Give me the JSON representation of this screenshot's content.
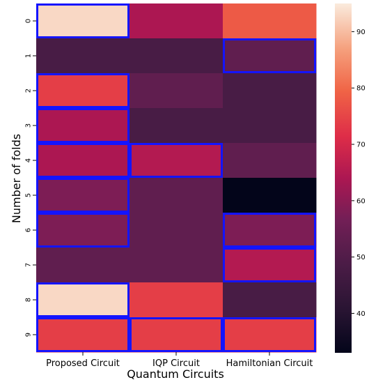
{
  "chart_data": {
    "type": "heatmap",
    "title": "",
    "xlabel": "Quantum Circuits",
    "ylabel": "Number of folds",
    "x_categories": [
      "Proposed Circuit",
      "IQP Circuit",
      "Hamiltonian Circuit"
    ],
    "y_categories": [
      "0",
      "1",
      "2",
      "3",
      "4",
      "5",
      "6",
      "7",
      "8",
      "9"
    ],
    "values": [
      [
        93,
        64,
        78
      ],
      [
        48,
        48,
        53
      ],
      [
        74,
        53,
        48
      ],
      [
        64,
        48,
        48
      ],
      [
        64,
        65,
        53
      ],
      [
        58,
        53,
        33
      ],
      [
        58,
        53,
        58
      ],
      [
        53,
        53,
        65
      ],
      [
        93,
        74,
        48
      ],
      [
        74,
        74,
        74
      ]
    ],
    "highlighted_cells": [
      [
        0,
        0
      ],
      [
        1,
        2
      ],
      [
        2,
        0
      ],
      [
        3,
        0
      ],
      [
        4,
        0
      ],
      [
        4,
        1
      ],
      [
        5,
        0
      ],
      [
        6,
        0
      ],
      [
        6,
        2
      ],
      [
        7,
        2
      ],
      [
        8,
        0
      ],
      [
        9,
        0
      ],
      [
        9,
        1
      ],
      [
        9,
        2
      ]
    ],
    "highlight_color": "#1414ff",
    "colorbar": {
      "min": 33,
      "max": 95,
      "ticks": [
        40,
        50,
        60,
        70,
        80,
        90
      ],
      "colormap": "rocket"
    }
  }
}
